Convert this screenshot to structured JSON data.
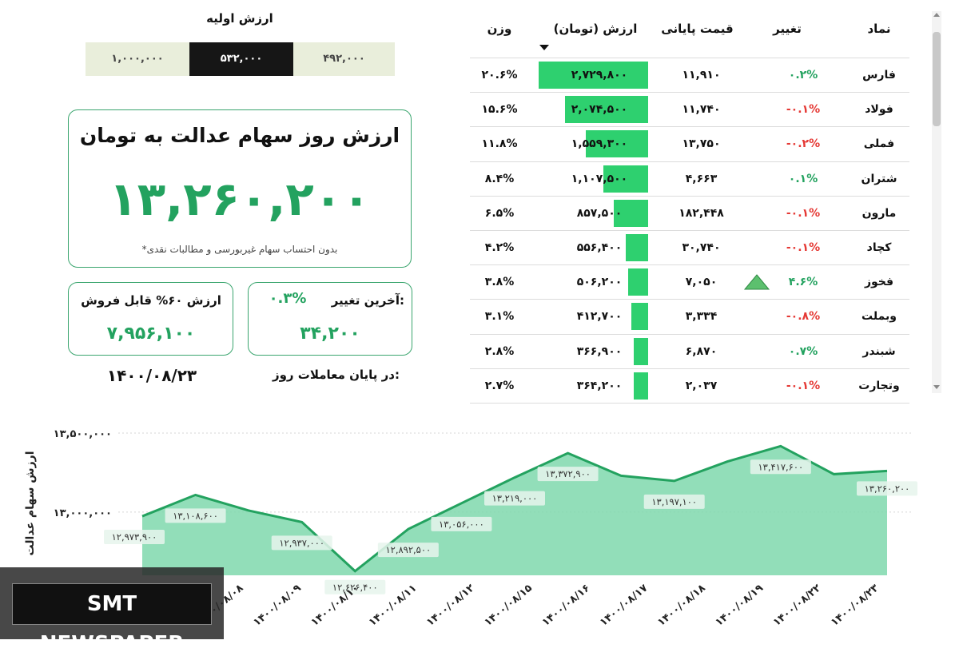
{
  "initial_value": {
    "title": "ارزش اولیه",
    "options": [
      "۱,۰۰۰,۰۰۰",
      "۵۳۲,۰۰۰",
      "۴۹۲,۰۰۰"
    ],
    "selected": "۵۳۲,۰۰۰"
  },
  "main_card": {
    "title": "ارزش روز سهام عدالت به تومان",
    "value": "۱۳,۲۶۰,۲۰۰",
    "note": "*بدون احتساب سهام غیربورسی و مطالبات نقدی"
  },
  "sellable_card": {
    "label": "ارزش ۶۰% قابل فروش",
    "value": "۷,۹۵۶,۱۰۰"
  },
  "last_change_card": {
    "label": "آخرین تغییر:",
    "percent": "۰.۳%",
    "value": "۳۴,۲۰۰"
  },
  "footer": {
    "end_label": "در پایان معاملات روز:",
    "date": "۱۴۰۰/۰۸/۲۳"
  },
  "table": {
    "headers": {
      "symbol": "نماد",
      "change": "تغییر",
      "final_price": "قیمت پایانی",
      "value": "ارزش (تومان)",
      "weight": "وزن"
    },
    "rows": [
      {
        "symbol": "فارس",
        "change": "۰.۲%",
        "dir": "up",
        "final_price": "۱۱,۹۱۰",
        "value": "۲,۷۲۹,۸۰۰",
        "value_num": 2729800,
        "weight": "۲۰.۶%"
      },
      {
        "symbol": "فولاد",
        "change": "-۰.۱%",
        "dir": "down",
        "final_price": "۱۱,۷۴۰",
        "value": "۲,۰۷۴,۵۰۰",
        "value_num": 2074500,
        "weight": "۱۵.۶%"
      },
      {
        "symbol": "فملی",
        "change": "-۰.۲%",
        "dir": "down",
        "final_price": "۱۳,۷۵۰",
        "value": "۱,۵۵۹,۳۰۰",
        "value_num": 1559300,
        "weight": "۱۱.۸%"
      },
      {
        "symbol": "شتران",
        "change": "۰.۱%",
        "dir": "up",
        "final_price": "۴,۶۶۳",
        "value": "۱,۱۰۷,۵۰۰",
        "value_num": 1107500,
        "weight": "۸.۴%"
      },
      {
        "symbol": "مارون",
        "change": "-۰.۱%",
        "dir": "down",
        "final_price": "۱۸۲,۴۴۸",
        "value": "۸۵۷,۵۰۰",
        "value_num": 857500,
        "weight": "۶.۵%"
      },
      {
        "symbol": "کچاد",
        "change": "-۰.۱%",
        "dir": "down",
        "final_price": "۳۰,۷۴۰",
        "value": "۵۵۶,۴۰۰",
        "value_num": 556400,
        "weight": "۴.۲%"
      },
      {
        "symbol": "فخوز",
        "change": "۴.۶%",
        "dir": "up",
        "final_price": "۷,۰۵۰",
        "value": "۵۰۶,۲۰۰",
        "value_num": 506200,
        "weight": "۳.۸%",
        "flag": "triangle-up-icon"
      },
      {
        "symbol": "وبملت",
        "change": "-۰.۸%",
        "dir": "down",
        "final_price": "۳,۳۳۴",
        "value": "۴۱۲,۷۰۰",
        "value_num": 412700,
        "weight": "۳.۱%"
      },
      {
        "symbol": "شبندر",
        "change": "۰.۷%",
        "dir": "up",
        "final_price": "۶,۸۷۰",
        "value": "۳۶۶,۹۰۰",
        "value_num": 366900,
        "weight": "۲.۸%"
      },
      {
        "symbol": "وتجارت",
        "change": "-۰.۱%",
        "dir": "down",
        "final_price": "۲,۰۳۷",
        "value": "۳۶۴,۲۰۰",
        "value_num": 364200,
        "weight": "۲.۷%"
      }
    ],
    "sort_icon": "sort-desc-icon"
  },
  "chart_data": {
    "type": "area",
    "ylabel": "ارزش سهام عدالت",
    "y_ticks": [
      "۱۳,۵۰۰,۰۰۰",
      "۱۳,۰۰۰,۰۰۰"
    ],
    "y_tick_values": [
      13500000,
      13000000
    ],
    "ylim": [
      12600000,
      13500000
    ],
    "x_tick_labels": [
      "۱۴۰۰/۰۸/۰۸",
      "۱۴۰۰/۰۸/۰۹",
      "۱۴۰۰/۰۸/۱۰",
      "۱۴۰۰/۰۸/۱۱",
      "۱۴۰۰/۰۸/۱۲",
      "۱۴۰۰/۰۸/۱۵",
      "۱۴۰۰/۰۸/۱۶",
      "۱۴۰۰/۰۸/۱۷",
      "۱۴۰۰/۰۸/۱۸",
      "۱۴۰۰/۰۸/۱۹",
      "۱۴۰۰/۰۸/۲۲",
      "۱۴۰۰/۰۸/۲۳"
    ],
    "values": [
      12973900,
      13108600,
      13010000,
      12937000,
      12626400,
      12892500,
      13056000,
      13219000,
      13372900,
      13230000,
      13197100,
      13320000,
      13417600,
      13240000,
      13260200
    ],
    "point_labels": [
      "۱۲,۹۷۳,۹۰۰",
      "۱۳,۱۰۸,۶۰۰",
      "",
      "۱۲,۹۳۷,۰۰۰",
      "۱۲,۶۲۶,۴۰۰",
      "۱۲,۸۹۲,۵۰۰",
      "۱۳,۰۵۶,۰۰۰",
      "۱۳,۲۱۹,۰۰۰",
      "۱۳,۳۷۲,۹۰۰",
      "",
      "۱۳,۱۹۷,۱۰۰",
      "",
      "۱۳,۴۱۷,۶۰۰",
      "",
      "۱۳,۲۶۰,۲۰۰"
    ],
    "fill_color": "#7fd8ad",
    "line_color": "#23a25f"
  },
  "watermark": {
    "text": "SMT NEWSPAPER"
  }
}
